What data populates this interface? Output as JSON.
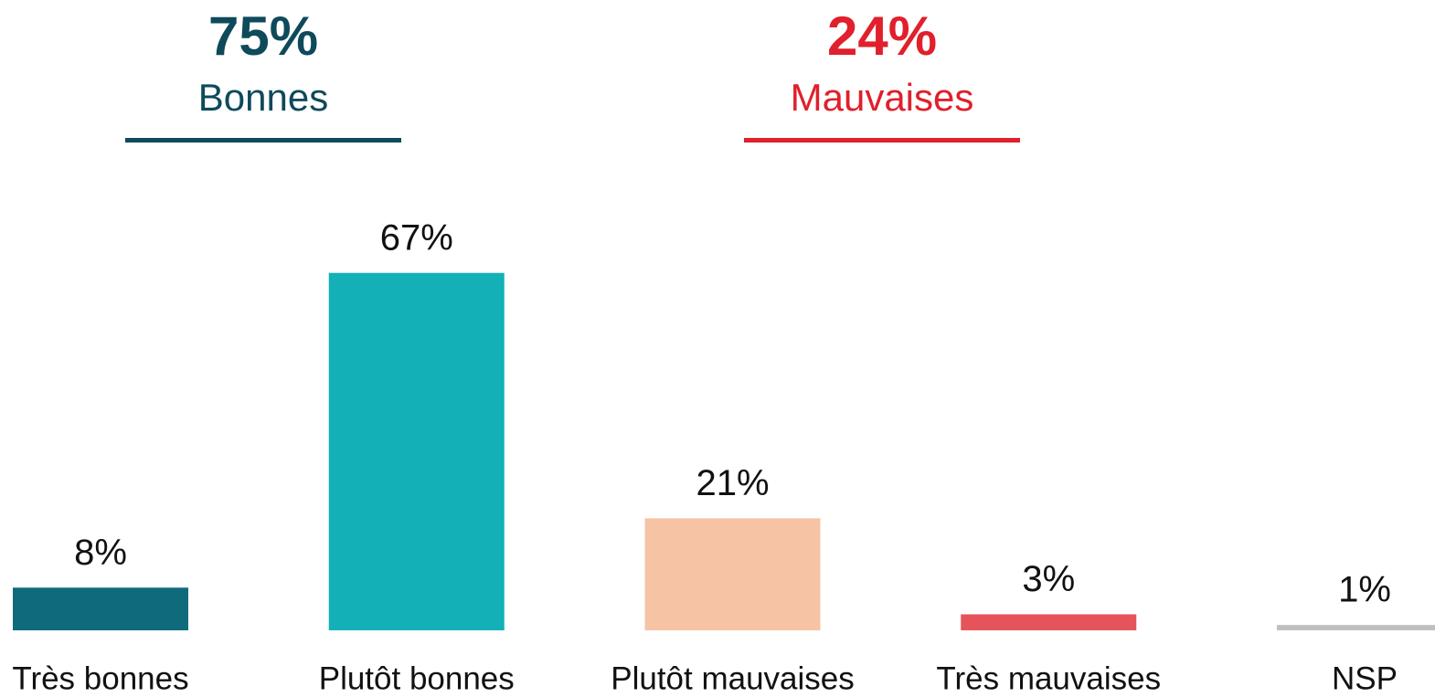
{
  "chart_data": {
    "type": "bar",
    "summaries": [
      {
        "value": 75,
        "label": "75%",
        "text": "Bonnes",
        "color": "#0e4a5a"
      },
      {
        "value": 24,
        "label": "24%",
        "text": "Mauvaises",
        "color": "#e0202c"
      }
    ],
    "categories": [
      "Très bonnes",
      "Plutôt bonnes",
      "Plutôt mauvaises",
      "Très mauvaises",
      "NSP"
    ],
    "values": [
      8,
      67,
      21,
      3,
      1
    ],
    "value_labels": [
      "8%",
      "67%",
      "21%",
      "3%",
      "1%"
    ],
    "colors": [
      "#0f6a7c",
      "#13b0b8",
      "#f6c4a4",
      "#e5545a",
      "#bfbfbf"
    ],
    "ylim": [
      0,
      100
    ]
  }
}
